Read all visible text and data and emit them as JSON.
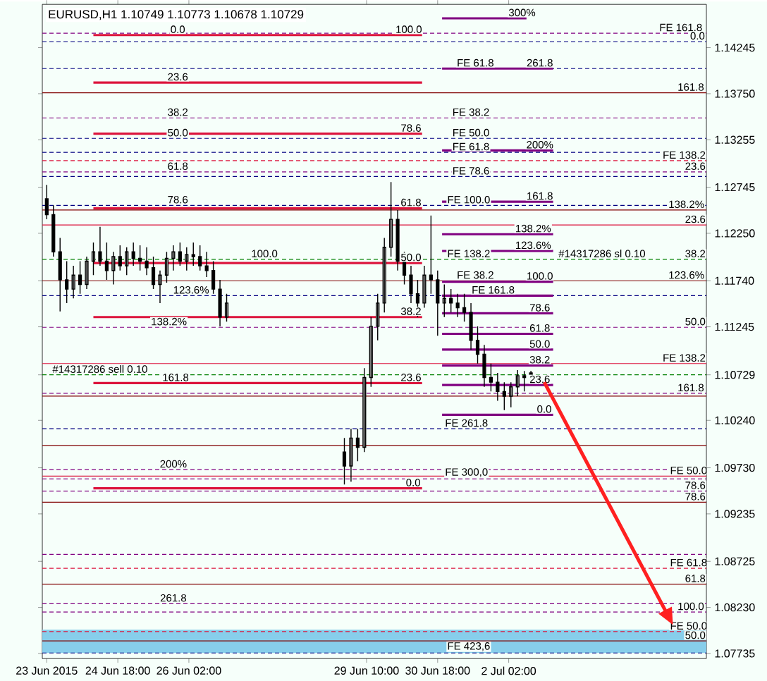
{
  "chart_data": {
    "type": "candlestick",
    "title": "EURUSD,H1 1.10749 1.10773 1.10678 1.10729",
    "x": [
      "2015-06-23T10:00",
      "2015-06-23T13:00",
      "2015-06-23T16:00",
      "2015-06-23T19:00",
      "2015-06-23T22:00",
      "2015-06-24T01:00",
      "2015-06-24T04:00",
      "2015-06-24T07:00",
      "2015-06-24T10:00",
      "2015-06-24T13:00",
      "2015-06-24T16:00",
      "2015-06-24T19:00",
      "2015-06-24T22:00",
      "2015-06-25T01:00",
      "2015-06-25T04:00",
      "2015-06-25T07:00",
      "2015-06-25T10:00",
      "2015-06-25T13:00",
      "2015-06-25T16:00",
      "2015-06-25T19:00",
      "2015-06-25T22:00",
      "2015-06-26T01:00",
      "2015-06-26T04:00",
      "2015-06-26T07:00",
      "2015-06-26T10:00",
      "2015-06-26T13:00",
      "2015-06-26T16:00",
      "2015-06-26T19:00",
      "2015-06-29T00:00",
      "2015-06-29T03:00",
      "2015-06-29T06:00",
      "2015-06-29T09:00",
      "2015-06-29T12:00",
      "2015-06-29T15:00",
      "2015-06-29T18:00",
      "2015-06-29T21:00",
      "2015-06-30T00:00",
      "2015-06-30T03:00",
      "2015-06-30T06:00",
      "2015-06-30T09:00",
      "2015-06-30T12:00",
      "2015-06-30T15:00",
      "2015-06-30T18:00",
      "2015-06-30T21:00",
      "2015-07-01T00:00",
      "2015-07-01T03:00",
      "2015-07-01T06:00",
      "2015-07-01T09:00",
      "2015-07-01T12:00",
      "2015-07-01T15:00",
      "2015-07-01T18:00",
      "2015-07-01T21:00",
      "2015-07-02T00:00",
      "2015-07-02T03:00",
      "2015-07-02T06:00",
      "2015-07-02T09:00",
      "2015-07-02T12:00"
    ],
    "ohlc": [
      [
        1.1262,
        1.1277,
        1.124,
        1.1245
      ],
      [
        1.1245,
        1.1255,
        1.12,
        1.1205
      ],
      [
        1.1205,
        1.122,
        1.1141,
        1.1175
      ],
      [
        1.1175,
        1.1195,
        1.115,
        1.1165
      ],
      [
        1.1165,
        1.119,
        1.1155,
        1.118
      ],
      [
        1.118,
        1.1195,
        1.116,
        1.117
      ],
      [
        1.117,
        1.12,
        1.1165,
        1.1195
      ],
      [
        1.1195,
        1.1215,
        1.118,
        1.1205
      ],
      [
        1.1205,
        1.1232,
        1.119,
        1.1195
      ],
      [
        1.1195,
        1.1215,
        1.1175,
        1.1185
      ],
      [
        1.1185,
        1.1205,
        1.117,
        1.12
      ],
      [
        1.12,
        1.1212,
        1.1185,
        1.119
      ],
      [
        1.119,
        1.121,
        1.118,
        1.1205
      ],
      [
        1.1205,
        1.1215,
        1.119,
        1.1198
      ],
      [
        1.1198,
        1.1212,
        1.1185,
        1.1195
      ],
      [
        1.1195,
        1.121,
        1.118,
        1.1188
      ],
      [
        1.1188,
        1.12,
        1.1165,
        1.117
      ],
      [
        1.117,
        1.1185,
        1.115,
        1.118
      ],
      [
        1.118,
        1.1205,
        1.1172,
        1.1198
      ],
      [
        1.1198,
        1.1212,
        1.1185,
        1.1205
      ],
      [
        1.1205,
        1.1215,
        1.119,
        1.1195
      ],
      [
        1.1195,
        1.121,
        1.1185,
        1.1202
      ],
      [
        1.1202,
        1.1215,
        1.119,
        1.12
      ],
      [
        1.12,
        1.1212,
        1.1185,
        1.119
      ],
      [
        1.119,
        1.1205,
        1.1178,
        1.1185
      ],
      [
        1.1185,
        1.1195,
        1.116,
        1.1165
      ],
      [
        1.1165,
        1.1175,
        1.1125,
        1.1135
      ],
      [
        1.1135,
        1.116,
        1.113,
        1.115
      ],
      [
        1.099,
        1.1005,
        1.0955,
        1.0975
      ],
      [
        1.0975,
        1.1015,
        1.0958,
        1.1005
      ],
      [
        1.1005,
        1.1015,
        1.098,
        1.0995
      ],
      [
        1.0995,
        1.108,
        1.099,
        1.107
      ],
      [
        1.107,
        1.1135,
        1.106,
        1.1125
      ],
      [
        1.1125,
        1.116,
        1.111,
        1.115
      ],
      [
        1.115,
        1.122,
        1.114,
        1.121
      ],
      [
        1.121,
        1.128,
        1.12,
        1.124
      ],
      [
        1.124,
        1.125,
        1.1185,
        1.1195
      ],
      [
        1.1195,
        1.1205,
        1.117,
        1.118
      ],
      [
        1.118,
        1.119,
        1.115,
        1.116
      ],
      [
        1.116,
        1.1175,
        1.1135,
        1.115
      ],
      [
        1.115,
        1.119,
        1.1145,
        1.118
      ],
      [
        1.118,
        1.1244,
        1.116,
        1.1175
      ],
      [
        1.1175,
        1.1185,
        1.1115,
        1.115
      ],
      [
        1.115,
        1.117,
        1.1135,
        1.1155
      ],
      [
        1.1155,
        1.1165,
        1.114,
        1.115
      ],
      [
        1.115,
        1.116,
        1.1135,
        1.1145
      ],
      [
        1.1145,
        1.116,
        1.113,
        1.114
      ],
      [
        1.114,
        1.115,
        1.11,
        1.111
      ],
      [
        1.111,
        1.1125,
        1.1085,
        1.1095
      ],
      [
        1.1095,
        1.1105,
        1.106,
        1.107
      ],
      [
        1.107,
        1.1085,
        1.1055,
        1.1065
      ],
      [
        1.1065,
        1.1075,
        1.1045,
        1.1055
      ],
      [
        1.1055,
        1.1065,
        1.1035,
        1.105
      ],
      [
        1.105,
        1.1065,
        1.1038,
        1.106
      ],
      [
        1.106,
        1.1078,
        1.105,
        1.1072
      ],
      [
        1.1072,
        1.1077,
        1.1055,
        1.107
      ],
      [
        1.10749,
        1.10773,
        1.10678,
        1.10729
      ]
    ],
    "series": [
      {
        "type": "line",
        "color": "#dc143c",
        "x": [
          "2015-06-24T07:00",
          "2015-06-30T11:00"
        ],
        "values": [
          1.1438,
          1.1438
        ]
      },
      {
        "type": "line",
        "color": "#dc143c",
        "x": [
          "2015-06-24T07:00",
          "2015-06-30T11:00"
        ],
        "values": [
          1.1387,
          1.1387
        ]
      },
      {
        "type": "line",
        "color": "#dc143c",
        "x": [
          "2015-06-24T07:00",
          "2015-06-30T11:00"
        ],
        "values": [
          1.1332,
          1.1332
        ]
      },
      {
        "type": "line",
        "color": "#dc143c",
        "x": [
          "2015-06-24T07:00",
          "2015-06-30T11:00"
        ],
        "values": [
          1.1252,
          1.1252
        ]
      },
      {
        "type": "line",
        "color": "#dc143c",
        "x": [
          "2015-06-24T07:00",
          "2015-06-30T11:00"
        ],
        "values": [
          1.1193,
          1.1193
        ]
      },
      {
        "type": "line",
        "color": "#dc143c",
        "x": [
          "2015-06-24T07:00",
          "2015-06-30T11:00"
        ],
        "values": [
          1.1135,
          1.1135
        ]
      },
      {
        "type": "line",
        "color": "#dc143c",
        "x": [
          "2015-06-24T07:00",
          "2015-06-30T11:00"
        ],
        "values": [
          1.1064,
          1.1064
        ]
      },
      {
        "type": "line",
        "color": "#dc143c",
        "x": [
          "2015-06-24T07:00",
          "2015-06-30T11:00"
        ],
        "values": [
          1.0951,
          1.0951
        ]
      },
      {
        "type": "line",
        "color": "#800080",
        "x": [
          "2015-06-30T20:00",
          "2015-07-02T10:00"
        ],
        "values": [
          1.1456,
          1.1456
        ]
      },
      {
        "type": "line",
        "color": "#800080",
        "x": [
          "2015-06-30T20:00",
          "2015-07-02T22:00"
        ],
        "values": [
          1.1402,
          1.1402
        ]
      },
      {
        "type": "line",
        "color": "#800080",
        "x": [
          "2015-06-30T20:00",
          "2015-07-02T22:00"
        ],
        "values": [
          1.1314,
          1.1314
        ]
      },
      {
        "type": "line",
        "color": "#800080",
        "x": [
          "2015-06-30T20:00",
          "2015-07-02T22:00"
        ],
        "values": [
          1.1259,
          1.1259
        ]
      },
      {
        "type": "line",
        "color": "#800080",
        "x": [
          "2015-06-30T20:00",
          "2015-07-02T22:00"
        ],
        "values": [
          1.1224,
          1.1224
        ]
      },
      {
        "type": "line",
        "color": "#800080",
        "x": [
          "2015-06-30T20:00",
          "2015-07-02T22:00"
        ],
        "values": [
          1.1206,
          1.1206
        ]
      },
      {
        "type": "line",
        "color": "#800080",
        "x": [
          "2015-06-30T20:00",
          "2015-07-02T22:00"
        ],
        "values": [
          1.1173,
          1.1173
        ]
      },
      {
        "type": "line",
        "color": "#800080",
        "x": [
          "2015-06-30T20:00",
          "2015-07-02T22:00"
        ],
        "values": [
          1.1158,
          1.1158
        ]
      },
      {
        "type": "line",
        "color": "#800080",
        "x": [
          "2015-06-30T20:00",
          "2015-07-02T22:00"
        ],
        "values": [
          1.1139,
          1.1139
        ]
      },
      {
        "type": "line",
        "color": "#800080",
        "x": [
          "2015-06-30T20:00",
          "2015-07-02T22:00"
        ],
        "values": [
          1.1117,
          1.1117
        ]
      },
      {
        "type": "line",
        "color": "#800080",
        "x": [
          "2015-06-30T20:00",
          "2015-07-02T22:00"
        ],
        "values": [
          1.11,
          1.11
        ]
      },
      {
        "type": "line",
        "color": "#800080",
        "x": [
          "2015-06-30T20:00",
          "2015-07-02T22:00"
        ],
        "values": [
          1.1083,
          1.1083
        ]
      },
      {
        "type": "line",
        "color": "#800080",
        "x": [
          "2015-06-30T20:00",
          "2015-07-02T22:00"
        ],
        "values": [
          1.1062,
          1.1062
        ]
      },
      {
        "type": "line",
        "color": "#800080",
        "x": [
          "2015-06-30T20:00",
          "2015-07-02T22:00"
        ],
        "values": [
          1.103,
          1.103
        ]
      }
    ],
    "xlim": [
      "2015-06-23T08:00",
      "2015-07-05T19:00"
    ],
    "ylim": [
      1.0768,
      1.1471
    ],
    "xticks": [
      {
        "value": "2015-06-23T10:00",
        "label": "23 Jun 2015"
      },
      {
        "value": "2015-06-24T18:00",
        "label": "24 Jun 18:00"
      },
      {
        "value": "2015-06-26T02:00",
        "label": "26 Jun 02:00"
      },
      {
        "value": "2015-06-29T10:00",
        "label": "29 Jun 10:00"
      },
      {
        "value": "2015-06-30T18:00",
        "label": "30 Jun 18:00"
      },
      {
        "value": "2015-07-02T02:00",
        "label": "2 Jul 02:00"
      }
    ],
    "yticks": [
      {
        "value": 1.14245,
        "label": "1.14245"
      },
      {
        "value": 1.1375,
        "label": "1.13750"
      },
      {
        "value": 1.13255,
        "label": "1.13255"
      },
      {
        "value": 1.12745,
        "label": "1.12745"
      },
      {
        "value": 1.1225,
        "label": "1.12250"
      },
      {
        "value": 1.1174,
        "label": "1.11740"
      },
      {
        "value": 1.11245,
        "label": "1.11245"
      },
      {
        "value": 1.10729,
        "label": "1.10729"
      },
      {
        "value": 1.1024,
        "label": "1.10240"
      },
      {
        "value": 1.0973,
        "label": "1.09730"
      },
      {
        "value": 1.09235,
        "label": "1.09235"
      },
      {
        "value": 1.08725,
        "label": "1.08725"
      },
      {
        "value": 1.0823,
        "label": "1.08230"
      },
      {
        "value": 1.07735,
        "label": "1.07735"
      }
    ],
    "bands": [
      {
        "axis": "y",
        "from": 1.0774,
        "to": 1.0799,
        "color": "#87ceeb"
      }
    ],
    "ref_lines": [
      {
        "axis": "y",
        "value": 1.144,
        "color": "#800080",
        "line_style": "dashed"
      },
      {
        "axis": "y",
        "value": 1.1431,
        "color": "#000080",
        "line_style": "dashed"
      },
      {
        "axis": "y",
        "value": 1.1402,
        "color": "#000080",
        "line_style": "dashed"
      },
      {
        "axis": "y",
        "value": 1.1376,
        "color": "#800000",
        "line_style": "solid"
      },
      {
        "axis": "y",
        "value": 1.1349,
        "color": "#800080",
        "line_style": "dashed"
      },
      {
        "axis": "y",
        "value": 1.1327,
        "color": "#000080",
        "line_style": "dashed"
      },
      {
        "axis": "y",
        "value": 1.1312,
        "color": "#000080",
        "line_style": "dashed"
      },
      {
        "axis": "y",
        "value": 1.1303,
        "color": "#dc143c",
        "line_style": "dashed"
      },
      {
        "axis": "y",
        "value": 1.1291,
        "color": "#800080",
        "line_style": "dashed"
      },
      {
        "axis": "y",
        "value": 1.1286,
        "color": "#000080",
        "line_style": "dashed"
      },
      {
        "axis": "y",
        "value": 1.1255,
        "color": "#000080",
        "line_style": "dashed"
      },
      {
        "axis": "y",
        "value": 1.125,
        "color": "#800000",
        "line_style": "solid"
      },
      {
        "axis": "y",
        "value": 1.1234,
        "color": "#dc143c",
        "line_style": "solid"
      },
      {
        "axis": "y",
        "value": 1.1197,
        "color": "#008000",
        "line_style": "dashed"
      },
      {
        "axis": "y",
        "value": 1.1174,
        "color": "#800000",
        "line_style": "solid"
      },
      {
        "axis": "y",
        "value": 1.1158,
        "color": "#000080",
        "line_style": "dashed"
      },
      {
        "axis": "y",
        "value": 1.1124,
        "color": "#800080",
        "line_style": "dashed"
      },
      {
        "axis": "y",
        "value": 1.1085,
        "color": "#dc143c",
        "line_style": "solid"
      },
      {
        "axis": "y",
        "value": 1.10729,
        "color": "#008000",
        "line_style": "dashed"
      },
      {
        "axis": "y",
        "value": 1.1053,
        "color": "#800080",
        "line_style": "dashed"
      },
      {
        "axis": "y",
        "value": 1.105,
        "color": "#800000",
        "line_style": "solid"
      },
      {
        "axis": "y",
        "value": 1.1015,
        "color": "#000080",
        "line_style": "dashed"
      },
      {
        "axis": "y",
        "value": 1.0997,
        "color": "#800000",
        "line_style": "solid"
      },
      {
        "axis": "y",
        "value": 1.0971,
        "color": "#800080",
        "line_style": "dashed"
      },
      {
        "axis": "y",
        "value": 1.0964,
        "color": "#dc143c",
        "line_style": "solid"
      },
      {
        "axis": "y",
        "value": 1.0961,
        "color": "#800080",
        "line_style": "dashed"
      },
      {
        "axis": "y",
        "value": 1.0948,
        "color": "#800080",
        "line_style": "dashed"
      },
      {
        "axis": "y",
        "value": 1.0936,
        "color": "#800000",
        "line_style": "solid"
      },
      {
        "axis": "y",
        "value": 1.088,
        "color": "#800080",
        "line_style": "dashed"
      },
      {
        "axis": "y",
        "value": 1.0865,
        "color": "#dc143c",
        "line_style": "dashed"
      },
      {
        "axis": "y",
        "value": 1.0848,
        "color": "#800000",
        "line_style": "solid"
      },
      {
        "axis": "y",
        "value": 1.0827,
        "color": "#800080",
        "line_style": "dashed"
      },
      {
        "axis": "y",
        "value": 1.0818,
        "color": "#800080",
        "line_style": "dashed"
      },
      {
        "axis": "y",
        "value": 1.0797,
        "color": "#dc143c",
        "line_style": "dashed"
      },
      {
        "axis": "y",
        "value": 1.0787,
        "color": "#800000",
        "line_style": "solid"
      },
      {
        "axis": "y",
        "value": 1.0774,
        "color": "#000080",
        "line_style": "dashed"
      }
    ],
    "annotations": [
      {
        "text": "0.0",
        "x": "2015-06-25T21:00",
        "y": 1.1438
      },
      {
        "text": "100.0",
        "x": "2015-06-30T05:00",
        "y": 1.1438
      },
      {
        "text": "23.6",
        "x": "2015-06-25T21:00",
        "y": 1.1387
      },
      {
        "text": "38.2",
        "x": "2015-06-25T21:00",
        "y": 1.1349
      },
      {
        "text": "78.6",
        "x": "2015-06-30T06:00",
        "y": 1.1332
      },
      {
        "text": "50.0",
        "x": "2015-06-25T21:00",
        "y": 1.1327
      },
      {
        "text": "61.8",
        "x": "2015-06-25T21:00",
        "y": 1.1291
      },
      {
        "text": "78.6",
        "x": "2015-06-25T21:00",
        "y": 1.1255
      },
      {
        "text": "61.8",
        "x": "2015-06-30T06:00",
        "y": 1.1252
      },
      {
        "text": "100.0",
        "x": "2015-06-27T12:00",
        "y": 1.1197
      },
      {
        "text": "50.0",
        "x": "2015-06-30T06:00",
        "y": 1.1193
      },
      {
        "text": "123.6%",
        "x": "2015-06-26T03:00",
        "y": 1.1158
      },
      {
        "text": "38.2",
        "x": "2015-06-30T06:00",
        "y": 1.1135
      },
      {
        "text": "138.2%",
        "x": "2015-06-25T17:00",
        "y": 1.1124
      },
      {
        "text": "161.8",
        "x": "2015-06-25T20:00",
        "y": 1.1064
      },
      {
        "text": "23.6",
        "x": "2015-06-30T06:00",
        "y": 1.1064
      },
      {
        "text": "200%",
        "x": "2015-06-25T19:00",
        "y": 1.0971
      },
      {
        "text": "0.0",
        "x": "2015-06-30T07:00",
        "y": 1.0951
      },
      {
        "text": "261.8",
        "x": "2015-06-25T19:00",
        "y": 1.0827
      },
      {
        "text": "#14317286 sell 0.10",
        "x": "2015-06-24T10:00",
        "y": 1.10729
      },
      {
        "text": "#14317286 sl 0.10",
        "x": "2015-07-03T20:00",
        "y": 1.1197
      },
      {
        "text": "300%",
        "x": "2015-07-02T08:00",
        "y": 1.1456
      },
      {
        "text": "FE 61.8",
        "x": "2015-07-01T11:00",
        "y": 1.1402
      },
      {
        "text": "261.8",
        "x": "2015-07-02T16:00",
        "y": 1.1402
      },
      {
        "text": "FE 38.2",
        "x": "2015-07-01T09:00",
        "y": 1.1349
      },
      {
        "text": "FE 50.0",
        "x": "2015-07-01T09:00",
        "y": 1.1327
      },
      {
        "text": "FE 61.8",
        "x": "2015-07-01T09:00",
        "y": 1.1312
      },
      {
        "text": "200%",
        "x": "2015-07-02T16:00",
        "y": 1.1314
      },
      {
        "text": "FE 78.6",
        "x": "2015-07-01T09:00",
        "y": 1.1286
      },
      {
        "text": "FE 100.0",
        "x": "2015-07-01T08:00",
        "y": 1.1255
      },
      {
        "text": "161.8",
        "x": "2015-07-02T16:00",
        "y": 1.1259
      },
      {
        "text": "138.2%",
        "x": "2015-07-02T13:00",
        "y": 1.1224
      },
      {
        "text": "123.6%",
        "x": "2015-07-02T13:00",
        "y": 1.1206
      },
      {
        "text": "FE 138.2",
        "x": "2015-07-01T08:00",
        "y": 1.1197
      },
      {
        "text": "FE 38.2",
        "x": "2015-07-01T11:00",
        "y": 1.1174
      },
      {
        "text": "FE 161.8",
        "x": "2015-07-01T19:00",
        "y": 1.1158
      },
      {
        "text": "100.0",
        "x": "2015-07-02T16:00",
        "y": 1.1173
      },
      {
        "text": "78.6",
        "x": "2015-07-02T16:00",
        "y": 1.1139
      },
      {
        "text": "61.8",
        "x": "2015-07-02T16:00",
        "y": 1.1117
      },
      {
        "text": "50.0",
        "x": "2015-07-02T16:00",
        "y": 1.11
      },
      {
        "text": "38.2",
        "x": "2015-07-02T16:00",
        "y": 1.1083
      },
      {
        "text": "23.6",
        "x": "2015-07-02T16:00",
        "y": 1.1062
      },
      {
        "text": "0.0",
        "x": "2015-07-02T18:00",
        "y": 1.103
      },
      {
        "text": "FE 261.8",
        "x": "2015-07-01T07:00",
        "y": 1.1015
      },
      {
        "text": "FE 300,0",
        "x": "2015-07-01T07:00",
        "y": 1.0961
      },
      {
        "text": "FE 423,6",
        "x": "2015-07-01T08:00",
        "y": 1.0774
      },
      {
        "text": "FE 161.8",
        "x": "2015-07-05T07:30",
        "y": 1.144
      },
      {
        "text": "0.0",
        "x": "2015-07-05T15:00",
        "y": 1.1431
      },
      {
        "text": "161.8",
        "x": "2015-07-05T12:00",
        "y": 1.1376
      },
      {
        "text": "FE 138.2",
        "x": "2015-07-05T09:00",
        "y": 1.1303
      },
      {
        "text": "23.6",
        "x": "2015-07-05T14:00",
        "y": 1.1291
      },
      {
        "text": "138.2%",
        "x": "2015-07-05T10:00",
        "y": 1.125
      },
      {
        "text": "23.6",
        "x": "2015-07-05T14:00",
        "y": 1.1234
      },
      {
        "text": "38.2",
        "x": "2015-07-05T14:00",
        "y": 1.1197
      },
      {
        "text": "123.6%",
        "x": "2015-07-05T10:00",
        "y": 1.1174
      },
      {
        "text": "50.0",
        "x": "2015-07-05T14:00",
        "y": 1.1124
      },
      {
        "text": "FE 138.2",
        "x": "2015-07-05T09:00",
        "y": 1.1085
      },
      {
        "text": "161.8",
        "x": "2015-07-05T12:00",
        "y": 1.1053
      },
      {
        "text": "FE 50.0",
        "x": "2015-07-05T11:00",
        "y": 1.0964
      },
      {
        "text": "78.6",
        "x": "2015-07-05T14:00",
        "y": 1.0948
      },
      {
        "text": "78.6",
        "x": "2015-07-05T14:00",
        "y": 1.0936
      },
      {
        "text": "FE 61.8",
        "x": "2015-07-05T11:00",
        "y": 1.0865
      },
      {
        "text": "61.8",
        "x": "2015-07-05T14:00",
        "y": 1.0848
      },
      {
        "text": "100.0",
        "x": "2015-07-05T12:00",
        "y": 1.0818
      },
      {
        "text": "FE 50.0",
        "x": "2015-07-05T11:00",
        "y": 1.0797
      },
      {
        "text": "50.0",
        "x": "2015-07-05T14:00",
        "y": 1.0787
      }
    ]
  }
}
